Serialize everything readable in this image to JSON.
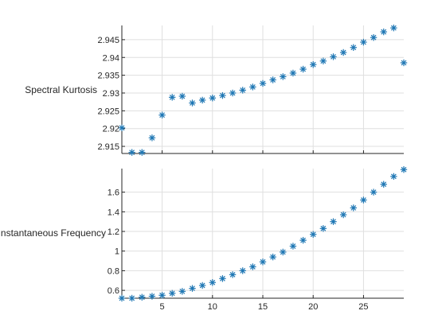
{
  "chart_data": [
    {
      "type": "scatter",
      "ylabel": "Spectral Kurtosis",
      "xlim": [
        1,
        29
      ],
      "ylim": [
        2.913,
        2.949
      ],
      "yticks": [
        2.915,
        2.92,
        2.925,
        2.93,
        2.935,
        2.94,
        2.945
      ],
      "ytick_labels": [
        "2.915",
        "2.92",
        "2.925",
        "2.93",
        "2.935",
        "2.94",
        "2.945"
      ],
      "xticks": [
        5,
        10,
        15,
        20,
        25
      ],
      "show_xtick_labels": false,
      "grid": true,
      "marker": "asterisk",
      "color": "#1f77b4",
      "x": [
        1,
        2,
        3,
        4,
        5,
        6,
        7,
        8,
        9,
        10,
        11,
        12,
        13,
        14,
        15,
        16,
        17,
        18,
        19,
        20,
        21,
        22,
        23,
        24,
        25,
        26,
        27,
        28,
        29
      ],
      "y": [
        2.9202,
        2.9133,
        2.9133,
        2.9174,
        2.9238,
        2.9288,
        2.9291,
        2.9272,
        2.928,
        2.9286,
        2.9293,
        2.93,
        2.9308,
        2.9317,
        2.9327,
        2.9337,
        2.9346,
        2.9356,
        2.9367,
        2.938,
        2.939,
        2.9402,
        2.9414,
        2.9428,
        2.9443,
        2.9456,
        2.9472,
        2.9483,
        2.9385
      ]
    },
    {
      "type": "scatter",
      "ylabel": "Instantaneous Frequency",
      "xlim": [
        1,
        29
      ],
      "ylim": [
        0.52,
        1.84
      ],
      "yticks": [
        0.6,
        0.8,
        1,
        1.2,
        1.4,
        1.6
      ],
      "ytick_labels": [
        "0.6",
        "0.8",
        "1",
        "1.2",
        "1.4",
        "1.6"
      ],
      "xticks": [
        5,
        10,
        15,
        20,
        25
      ],
      "xtick_labels": [
        "5",
        "10",
        "15",
        "20",
        "25"
      ],
      "show_xtick_labels": true,
      "grid": true,
      "marker": "asterisk",
      "color": "#1f77b4",
      "x": [
        1,
        2,
        3,
        4,
        5,
        6,
        7,
        8,
        9,
        10,
        11,
        12,
        13,
        14,
        15,
        16,
        17,
        18,
        19,
        20,
        21,
        22,
        23,
        24,
        25,
        26,
        27,
        28,
        29
      ],
      "y": [
        0.52,
        0.52,
        0.53,
        0.54,
        0.55,
        0.57,
        0.59,
        0.62,
        0.65,
        0.68,
        0.72,
        0.76,
        0.8,
        0.84,
        0.89,
        0.94,
        0.99,
        1.05,
        1.11,
        1.17,
        1.23,
        1.3,
        1.37,
        1.44,
        1.52,
        1.6,
        1.68,
        1.76,
        1.83
      ]
    }
  ]
}
